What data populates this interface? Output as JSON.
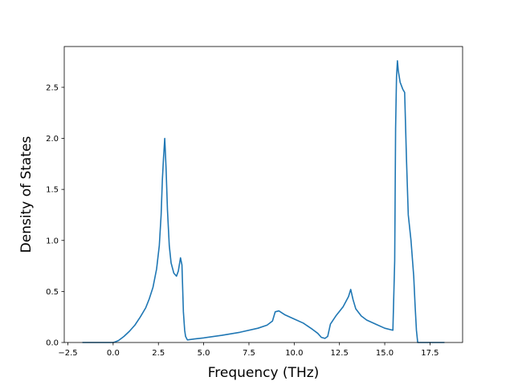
{
  "chart_data": {
    "type": "line",
    "xlabel": "Frequency (THz)",
    "ylabel": "Density of States",
    "xlim": [
      -2.7,
      19.3
    ],
    "ylim": [
      0.0,
      2.9
    ],
    "xticks": [
      -2.5,
      0.0,
      2.5,
      5.0,
      7.5,
      10.0,
      12.5,
      15.0,
      17.5
    ],
    "xtick_labels": [
      "−2.5",
      "0.0",
      "2.5",
      "5.0",
      "7.5",
      "10.0",
      "12.5",
      "15.0",
      "17.5"
    ],
    "yticks": [
      0.0,
      0.5,
      1.0,
      1.5,
      2.0,
      2.5
    ],
    "ytick_labels": [
      "0.0",
      "0.5",
      "1.0",
      "1.5",
      "2.0",
      "2.5"
    ],
    "grid": false,
    "line_color": "#1f77b4",
    "series": [
      {
        "x": [
          -1.7,
          -0.5,
          0.0,
          0.1,
          0.3,
          0.6,
          0.9,
          1.2,
          1.5,
          1.8,
          2.0,
          2.2,
          2.4,
          2.55,
          2.65,
          2.72,
          2.78,
          2.85,
          2.92,
          3.0,
          3.1,
          3.2,
          3.35,
          3.5,
          3.6,
          3.72,
          3.8,
          3.88,
          3.95,
          4.0,
          4.1,
          4.5,
          5.0,
          6.0,
          7.0,
          8.0,
          8.5,
          8.8,
          8.95,
          9.15,
          9.5,
          10.0,
          10.5,
          11.0,
          11.3,
          11.5,
          11.7,
          11.85,
          12.0,
          12.3,
          12.7,
          13.0,
          13.12,
          13.25,
          13.4,
          13.7,
          14.0,
          14.5,
          15.0,
          15.45,
          15.55,
          15.6,
          15.65,
          15.7,
          15.75,
          15.85,
          16.0,
          16.1,
          16.2,
          16.3,
          16.45,
          16.6,
          16.68,
          16.75,
          16.82,
          17.5,
          18.3
        ],
        "y": [
          0.0,
          0.0,
          0.0,
          0.005,
          0.02,
          0.06,
          0.11,
          0.17,
          0.25,
          0.34,
          0.43,
          0.54,
          0.72,
          0.95,
          1.25,
          1.6,
          1.8,
          2.0,
          1.72,
          1.3,
          0.95,
          0.78,
          0.68,
          0.65,
          0.7,
          0.83,
          0.76,
          0.3,
          0.12,
          0.06,
          0.025,
          0.035,
          0.045,
          0.07,
          0.1,
          0.14,
          0.17,
          0.21,
          0.3,
          0.31,
          0.27,
          0.23,
          0.19,
          0.13,
          0.09,
          0.05,
          0.04,
          0.06,
          0.18,
          0.26,
          0.35,
          0.45,
          0.52,
          0.42,
          0.33,
          0.26,
          0.22,
          0.18,
          0.14,
          0.12,
          0.8,
          2.1,
          2.6,
          2.76,
          2.66,
          2.55,
          2.48,
          2.45,
          1.8,
          1.25,
          1.0,
          0.65,
          0.35,
          0.12,
          0.0,
          0.0,
          0.0
        ]
      }
    ]
  }
}
